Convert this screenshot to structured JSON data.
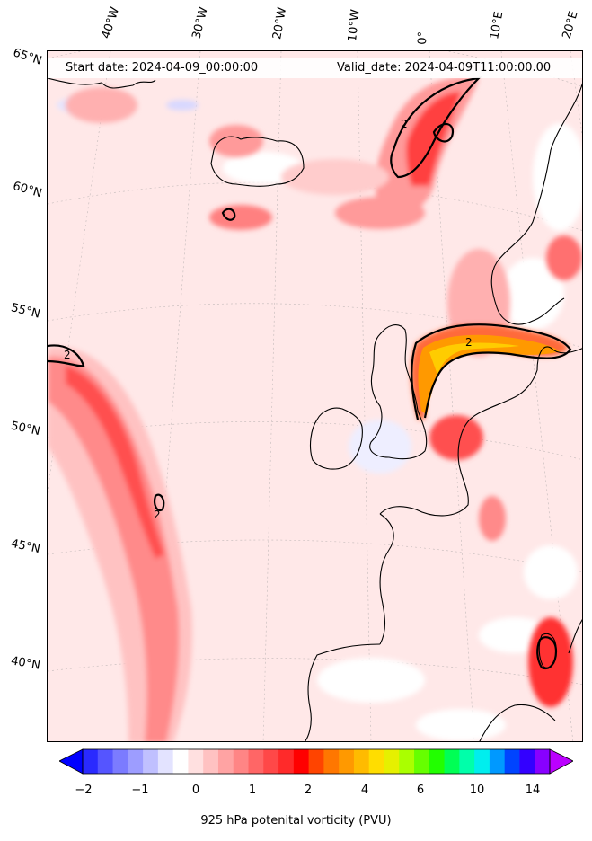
{
  "header": {
    "start_date": "Start date: 2024-04-09_00:00:00",
    "valid_date": "Valid_date: 2024-04-09T11:00:00.00"
  },
  "map": {
    "projection": "lambert-conformal",
    "region": "North Atlantic and Western Europe",
    "longitude_labels": [
      "40°W",
      "30°W",
      "20°W",
      "10°W",
      "0°",
      "10°E",
      "20°E"
    ],
    "latitude_labels": [
      "65°N",
      "60°N",
      "55°N",
      "50°N",
      "45°N",
      "40°N"
    ],
    "contour_label": "2",
    "contour_level_pvu": 2
  },
  "colorbar": {
    "label": "925 hPa potenital vorticity (PVU)",
    "tick_labels": [
      "−2",
      "−1",
      "0",
      "1",
      "2",
      "4",
      "6",
      "10",
      "14"
    ],
    "colors": [
      "#0000ff",
      "#2a2aff",
      "#5555ff",
      "#7b7bff",
      "#9d9dff",
      "#c0c0ff",
      "#e3e3ff",
      "#ffffff",
      "#ffe0e0",
      "#ffc2c2",
      "#ffa3a3",
      "#ff8585",
      "#ff6666",
      "#ff4848",
      "#ff2a2a",
      "#ff0000",
      "#ff4400",
      "#ff7700",
      "#ff9900",
      "#ffbb00",
      "#ffdd00",
      "#e6f000",
      "#aaff00",
      "#66ff00",
      "#22ff00",
      "#00ff55",
      "#00ffaa",
      "#00eeee",
      "#0099ff",
      "#0044ff",
      "#3300ff",
      "#8800ff",
      "#bb00ff"
    ],
    "extend": "both"
  }
}
